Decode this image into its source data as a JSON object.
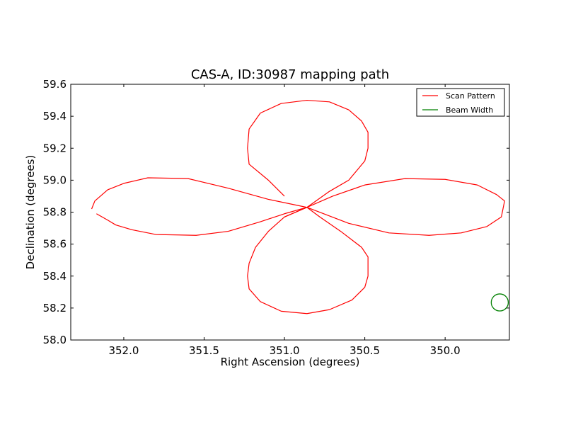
{
  "chart_data": {
    "type": "line",
    "title": "CAS-A, ID:30987 mapping path",
    "xlabel": "Right Ascension (degrees)",
    "ylabel": "Declination (degrees)",
    "xlim": [
      352.33,
      349.6
    ],
    "ylim": [
      58.0,
      59.6
    ],
    "x_inverted": true,
    "xticks": [
      352.0,
      351.5,
      351.0,
      350.5,
      350.0
    ],
    "xtick_labels": [
      "352.0",
      "351.5",
      "351.0",
      "350.5",
      "350.0"
    ],
    "yticks": [
      58.0,
      58.2,
      58.4,
      58.6,
      58.8,
      59.0,
      59.2,
      59.4,
      59.6
    ],
    "ytick_labels": [
      "58.0",
      "58.2",
      "58.4",
      "58.6",
      "58.8",
      "59.0",
      "59.2",
      "59.4",
      "59.6"
    ],
    "grid": false,
    "legend_position": "top-right",
    "center": {
      "ra": 350.86,
      "dec": 58.83
    },
    "series": [
      {
        "name": "Scan Pattern",
        "color": "#ff0000",
        "kind": "scan-path",
        "x": [
          352.17,
          352.1,
          352.05,
          351.95,
          351.8,
          351.55,
          351.35,
          351.15,
          351.0,
          350.86,
          350.78,
          350.65,
          350.52,
          350.48,
          350.48,
          350.5,
          350.58,
          350.72,
          350.86,
          351.02,
          351.15,
          351.22,
          351.23,
          351.22,
          351.18,
          351.1,
          351.0,
          350.86,
          350.7,
          350.5,
          350.25,
          350.0,
          349.8,
          349.68,
          349.63,
          349.65,
          349.74,
          349.9,
          350.1,
          350.35,
          350.6,
          350.86,
          351.1,
          351.35,
          351.6,
          351.85,
          352.0,
          352.1,
          352.18,
          352.2
        ],
        "y": [
          58.79,
          58.75,
          58.72,
          58.69,
          58.66,
          58.655,
          58.68,
          58.74,
          58.79,
          58.83,
          58.77,
          58.68,
          58.58,
          58.52,
          58.4,
          58.33,
          58.25,
          58.19,
          58.165,
          58.18,
          58.24,
          58.32,
          58.4,
          58.48,
          58.58,
          58.68,
          58.77,
          58.83,
          58.9,
          58.97,
          59.01,
          59.005,
          58.97,
          58.91,
          58.87,
          58.77,
          58.71,
          58.67,
          58.655,
          58.67,
          58.73,
          58.83,
          58.88,
          58.95,
          59.01,
          59.015,
          58.98,
          58.94,
          58.87,
          58.82
        ]
      },
      {
        "name": "Scan Pattern",
        "color": "#ff0000",
        "kind": "scan-path",
        "x": [
          351.0,
          351.1,
          351.22,
          351.23,
          351.22,
          351.15,
          351.02,
          350.86,
          350.72,
          350.6,
          350.52,
          350.48,
          350.48,
          350.5,
          350.6,
          350.72,
          350.86,
          351.0
        ],
        "y": [
          58.9,
          59.0,
          59.1,
          59.2,
          59.32,
          59.42,
          59.48,
          59.5,
          59.49,
          59.44,
          59.37,
          59.3,
          59.2,
          59.12,
          59.0,
          58.93,
          58.83,
          58.77
        ]
      },
      {
        "name": "Beam Width",
        "color": "#008000",
        "kind": "circle",
        "center_x": 349.66,
        "center_y": 58.235,
        "radius_deg": 0.053
      }
    ],
    "legend": [
      {
        "label": "Scan Pattern",
        "color": "#ff0000"
      },
      {
        "label": "Beam Width",
        "color": "#008000"
      }
    ]
  }
}
